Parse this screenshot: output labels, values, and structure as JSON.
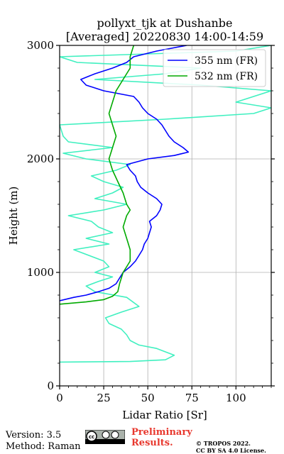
{
  "chart_data": {
    "type": "line",
    "title": "pollyxt_tjk at Dushanbe",
    "subtitle": "[Averaged] 20220830 14:00-14:59",
    "xlabel": "Lidar Ratio [Sr]",
    "ylabel": "Height (m)",
    "xlim": [
      0,
      120
    ],
    "ylim": [
      0,
      3000
    ],
    "x_ticks": [
      0,
      25,
      50,
      75,
      100
    ],
    "y_ticks": [
      0,
      1000,
      2000,
      3000
    ],
    "grid": true,
    "legend_position": "top-right",
    "series": [
      {
        "name": "355 nm (FR)",
        "color": "#0000ff",
        "points": [
          [
            0,
            750
          ],
          [
            8,
            780
          ],
          [
            15,
            800
          ],
          [
            22,
            830
          ],
          [
            28,
            860
          ],
          [
            32,
            900
          ],
          [
            34,
            950
          ],
          [
            36,
            1000
          ],
          [
            40,
            1050
          ],
          [
            43,
            1100
          ],
          [
            45,
            1150
          ],
          [
            47,
            1200
          ],
          [
            48,
            1250
          ],
          [
            50,
            1300
          ],
          [
            51,
            1350
          ],
          [
            52,
            1400
          ],
          [
            51,
            1450
          ],
          [
            55,
            1500
          ],
          [
            57,
            1550
          ],
          [
            58,
            1600
          ],
          [
            55,
            1650
          ],
          [
            50,
            1700
          ],
          [
            46,
            1750
          ],
          [
            44,
            1800
          ],
          [
            43,
            1850
          ],
          [
            40,
            1900
          ],
          [
            38,
            1950
          ],
          [
            50,
            2000
          ],
          [
            65,
            2030
          ],
          [
            73,
            2060
          ],
          [
            70,
            2100
          ],
          [
            65,
            2150
          ],
          [
            62,
            2200
          ],
          [
            60,
            2250
          ],
          [
            58,
            2300
          ],
          [
            55,
            2350
          ],
          [
            50,
            2400
          ],
          [
            47,
            2450
          ],
          [
            45,
            2500
          ],
          [
            42,
            2550
          ],
          [
            25,
            2600
          ],
          [
            15,
            2650
          ],
          [
            12,
            2700
          ],
          [
            20,
            2750
          ],
          [
            30,
            2800
          ],
          [
            38,
            2850
          ],
          [
            42,
            2900
          ],
          [
            55,
            2950
          ],
          [
            72,
            3000
          ]
        ]
      },
      {
        "name": "532 nm (FR)",
        "color": "#00aa00",
        "points": [
          [
            0,
            720
          ],
          [
            15,
            740
          ],
          [
            25,
            760
          ],
          [
            30,
            790
          ],
          [
            33,
            830
          ],
          [
            34,
            900
          ],
          [
            35,
            950
          ],
          [
            36,
            1000
          ],
          [
            38,
            1050
          ],
          [
            40,
            1100
          ],
          [
            40,
            1200
          ],
          [
            38,
            1300
          ],
          [
            36,
            1400
          ],
          [
            38,
            1500
          ],
          [
            40,
            1550
          ],
          [
            38,
            1600
          ],
          [
            36,
            1700
          ],
          [
            33,
            1800
          ],
          [
            30,
            1900
          ],
          [
            28,
            2000
          ],
          [
            30,
            2100
          ],
          [
            32,
            2200
          ],
          [
            30,
            2300
          ],
          [
            28,
            2400
          ],
          [
            30,
            2500
          ],
          [
            32,
            2600
          ],
          [
            36,
            2700
          ],
          [
            40,
            2800
          ],
          [
            40,
            2900
          ],
          [
            42,
            3000
          ]
        ]
      },
      {
        "name": "",
        "color": "#40f0c0",
        "points": [
          [
            0,
            210
          ],
          [
            40,
            215
          ],
          [
            60,
            230
          ],
          [
            65,
            270
          ],
          [
            60,
            300
          ],
          [
            55,
            330
          ],
          [
            45,
            360
          ],
          [
            40,
            400
          ],
          [
            38,
            450
          ],
          [
            35,
            500
          ],
          [
            28,
            550
          ],
          [
            26,
            600
          ],
          [
            35,
            650
          ],
          [
            45,
            700
          ],
          [
            38,
            780
          ],
          [
            20,
            830
          ],
          [
            15,
            880
          ],
          [
            22,
            920
          ],
          [
            30,
            960
          ],
          [
            20,
            1000
          ],
          [
            28,
            1050
          ],
          [
            25,
            1100
          ],
          [
            8,
            1200
          ],
          [
            28,
            1250
          ],
          [
            15,
            1300
          ],
          [
            30,
            1350
          ],
          [
            22,
            1400
          ],
          [
            18,
            1450
          ],
          [
            5,
            1500
          ],
          [
            25,
            1550
          ],
          [
            38,
            1600
          ],
          [
            20,
            1650
          ],
          [
            30,
            1700
          ],
          [
            36,
            1750
          ],
          [
            25,
            1800
          ],
          [
            18,
            1850
          ],
          [
            32,
            1900
          ],
          [
            40,
            1950
          ],
          [
            15,
            2000
          ],
          [
            2,
            2050
          ],
          [
            30,
            2100
          ],
          [
            5,
            2150
          ],
          [
            2,
            2200
          ],
          [
            0,
            2300
          ],
          [
            60,
            2350
          ],
          [
            110,
            2400
          ],
          [
            120,
            2450
          ],
          [
            100,
            2500
          ],
          [
            120,
            2600
          ],
          [
            80,
            2650
          ],
          [
            20,
            2700
          ],
          [
            60,
            2750
          ],
          [
            80,
            2800
          ],
          [
            10,
            2850
          ],
          [
            0,
            2900
          ],
          [
            100,
            2950
          ],
          [
            120,
            3000
          ]
        ]
      }
    ]
  },
  "footer": {
    "version": "Version: 3.5",
    "method": "Method: Raman",
    "preliminary_line1": "Preliminary",
    "preliminary_line2": "Results.",
    "copyright_line1": "© TROPOS 2022.",
    "copyright_line2": "CC BY SA 4.0 License."
  }
}
